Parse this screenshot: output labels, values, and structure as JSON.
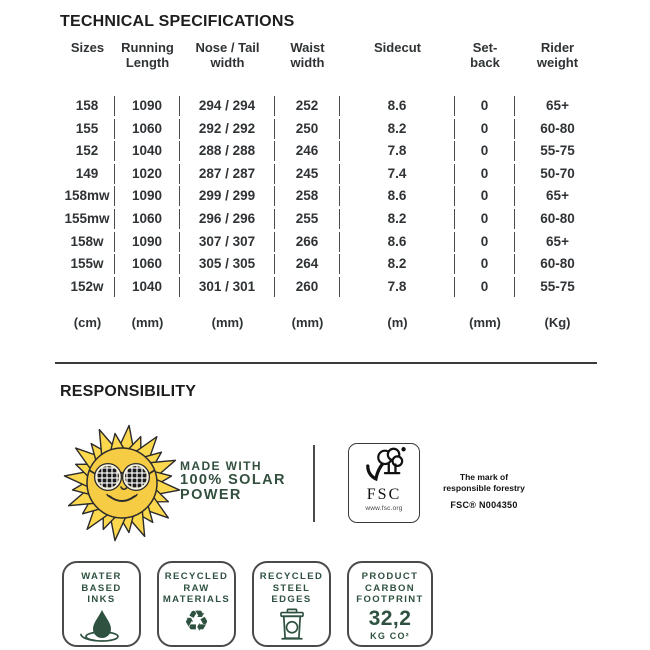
{
  "page": {
    "spec_heading": "TECHNICAL SPECIFICATIONS",
    "responsibility_heading": "RESPONSIBILITY"
  },
  "spec_table": {
    "columns": [
      {
        "l1": "Sizes",
        "l2": ""
      },
      {
        "l1": "Running",
        "l2": "Length"
      },
      {
        "l1": "Nose / Tail",
        "l2": "width"
      },
      {
        "l1": "Waist",
        "l2": "width"
      },
      {
        "l1": "Sidecut",
        "l2": ""
      },
      {
        "l1": "Set-",
        "l2": "back"
      },
      {
        "l1": "Rider",
        "l2": "weight"
      }
    ],
    "rows": [
      [
        "158",
        "1090",
        "294 / 294",
        "252",
        "8.6",
        "0",
        "65+"
      ],
      [
        "155",
        "1060",
        "292 / 292",
        "250",
        "8.2",
        "0",
        "60-80"
      ],
      [
        "152",
        "1040",
        "288 / 288",
        "246",
        "7.8",
        "0",
        "55-75"
      ],
      [
        "149",
        "1020",
        "287 / 287",
        "245",
        "7.4",
        "0",
        "50-70"
      ],
      [
        "158mw",
        "1090",
        "299 / 299",
        "258",
        "8.6",
        "0",
        "65+"
      ],
      [
        "155mw",
        "1060",
        "296 / 296",
        "255",
        "8.2",
        "0",
        "60-80"
      ],
      [
        "158w",
        "1090",
        "307 / 307",
        "266",
        "8.6",
        "0",
        "65+"
      ],
      [
        "155w",
        "1060",
        "305 / 305",
        "264",
        "8.2",
        "0",
        "60-80"
      ],
      [
        "152w",
        "1040",
        "301 / 301",
        "260",
        "7.8",
        "0",
        "55-75"
      ]
    ],
    "units": [
      "(cm)",
      "(mm)",
      "(mm)",
      "(mm)",
      "(m)",
      "(mm)",
      "(Kg)"
    ]
  },
  "solar": {
    "line1": "MADE WITH",
    "line2": "100% SOLAR",
    "line3": "POWER"
  },
  "fsc": {
    "label": "FSC",
    "url": "www.fsc.org",
    "mark_line1": "The mark of",
    "mark_line2": "responsible forestry",
    "license": "FSC® N004350"
  },
  "badges": [
    {
      "line1": "WATER",
      "line2": "BASED",
      "line3": "INKS",
      "icon": "water-drop-icon"
    },
    {
      "line1": "RECYCLED",
      "line2": "RAW",
      "line3": "MATERIALS",
      "icon": "recycle-icon",
      "glyph": "♻"
    },
    {
      "line1": "RECYCLED",
      "line2": "STEEL",
      "line3": "EDGES",
      "icon": "trash-bin-icon"
    },
    {
      "line1": "PRODUCT",
      "line2": "CARBON",
      "line3": "FOOTPRINT",
      "value": "32,2",
      "unit": "KG CO²"
    }
  ],
  "colors": {
    "green": "#2f5240",
    "sun_face": "#f7cc45",
    "sun_ray": "#fcd84f",
    "ink": "#2f3335",
    "rule": "#4a4a4a"
  }
}
